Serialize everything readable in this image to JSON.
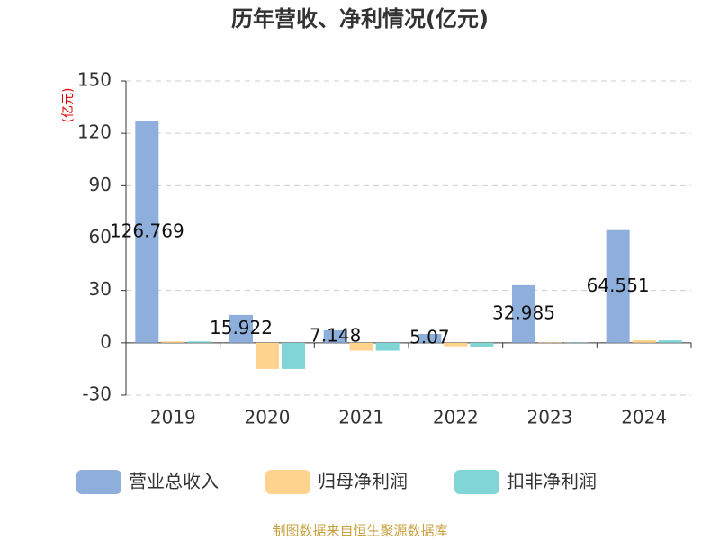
{
  "chart_data": {
    "type": "bar",
    "title": "历年营收、净利情况(亿元)",
    "y_unit": "(亿元)",
    "categories": [
      "2019",
      "2020",
      "2021",
      "2022",
      "2023",
      "2024"
    ],
    "series": [
      {
        "name": "营业总收入",
        "color": "#8eaedb",
        "values": [
          126.769,
          15.922,
          7.148,
          5.07,
          32.985,
          64.551
        ]
      },
      {
        "name": "归母净利润",
        "color": "#fdd38e",
        "values": [
          0.8,
          -15,
          -4.5,
          -2,
          0.3,
          1.5
        ]
      },
      {
        "name": "扣非净利润",
        "color": "#82d5d6",
        "values": [
          0.8,
          -15,
          -4.5,
          -2.3,
          0.2,
          1.4
        ]
      }
    ],
    "ylim": [
      -30,
      150
    ],
    "yticks": [
      -30,
      0,
      30,
      60,
      90,
      120,
      150
    ],
    "grid": true,
    "source": "制图数据来自恒生聚源数据库"
  }
}
